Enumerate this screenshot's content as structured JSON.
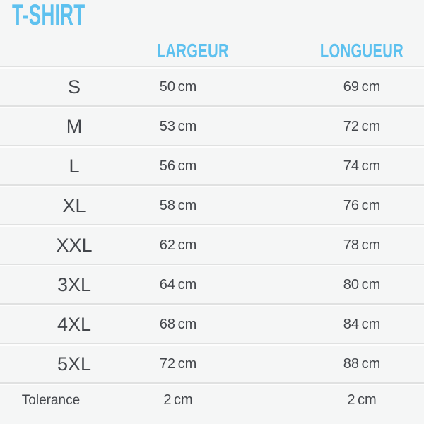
{
  "title": "T-SHIRT",
  "columns": {
    "size": "",
    "largeur": "LARGEUR",
    "longueur": "LONGUEUR"
  },
  "rows": [
    {
      "size": "S",
      "largeur": "50 cm",
      "longueur": "69 cm",
      "type": "size"
    },
    {
      "size": "M",
      "largeur": "53 cm",
      "longueur": "72 cm",
      "type": "size"
    },
    {
      "size": "L",
      "largeur": "56 cm",
      "longueur": "74 cm",
      "type": "size"
    },
    {
      "size": "XL",
      "largeur": "58 cm",
      "longueur": "76 cm",
      "type": "size"
    },
    {
      "size": "XXL",
      "largeur": "62 cm",
      "longueur": "78 cm",
      "type": "size"
    },
    {
      "size": "3XL",
      "largeur": "64 cm",
      "longueur": "80 cm",
      "type": "size"
    },
    {
      "size": "4XL",
      "largeur": "68 cm",
      "longueur": "84 cm",
      "type": "size"
    },
    {
      "size": "5XL",
      "largeur": "72 cm",
      "longueur": "88 cm",
      "type": "size"
    },
    {
      "size": "Tolerance",
      "largeur": "2 cm",
      "longueur": "2 cm",
      "type": "tolerance"
    }
  ],
  "colors": {
    "accent": "#5ec1ef",
    "text": "#43464b",
    "background": "#f5f6f6",
    "divider_dark": "#e0e1e1",
    "divider_light": "#fdfdfd"
  },
  "chart_data": {
    "type": "table",
    "title": "T-SHIRT",
    "columns": [
      "",
      "LARGEUR",
      "LONGUEUR"
    ],
    "categories": [
      "S",
      "M",
      "L",
      "XL",
      "XXL",
      "3XL",
      "4XL",
      "5XL",
      "Tolerance"
    ],
    "series": [
      {
        "name": "LARGEUR",
        "unit": "cm",
        "values": [
          50,
          53,
          56,
          58,
          62,
          64,
          68,
          72,
          2
        ]
      },
      {
        "name": "LONGUEUR",
        "unit": "cm",
        "values": [
          69,
          72,
          74,
          76,
          78,
          80,
          84,
          88,
          2
        ]
      }
    ],
    "layout": {
      "grid": "horizontal-groove-dividers",
      "legend": "none"
    }
  }
}
